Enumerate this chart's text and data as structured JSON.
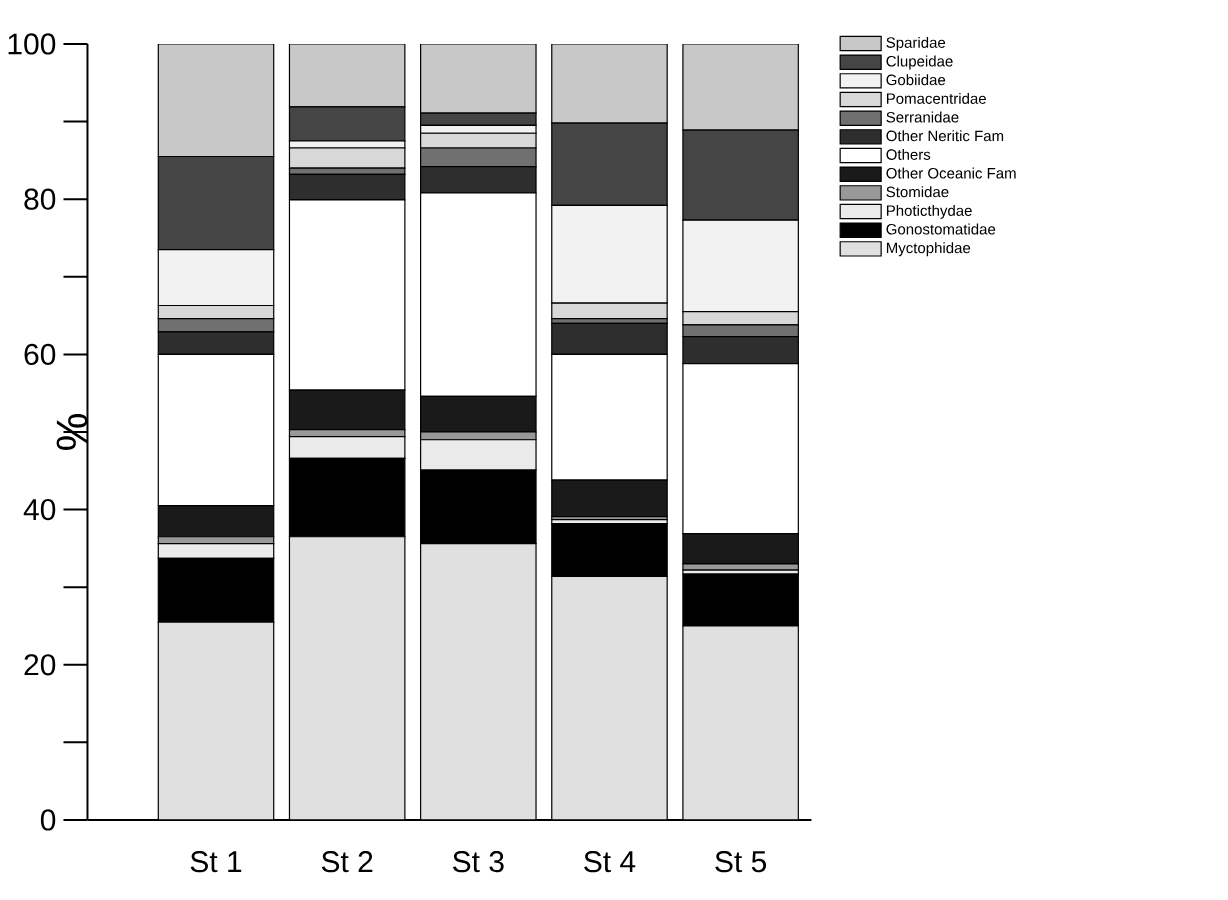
{
  "chart_data": {
    "type": "bar",
    "stacked": true,
    "ylabel": "%",
    "categories": [
      "St 1",
      "St 2",
      "St 3",
      "St 4",
      "St 5"
    ],
    "ylim": [
      0,
      100
    ],
    "yticks": [
      0,
      {
        "value": 10,
        "label": null
      },
      20,
      {
        "value": 30,
        "label": null
      },
      40,
      {
        "value": 50,
        "label": null
      },
      60,
      {
        "value": 70,
        "label": null
      },
      80,
      {
        "value": 90,
        "label": null
      },
      100
    ],
    "legend": "right",
    "grid": false,
    "series": [
      {
        "name": "Myctophidae",
        "color": "#e0e0e0",
        "values": [
          25.5,
          36.5,
          35.6,
          31.4,
          25.0
        ]
      },
      {
        "name": "Gonostomatidae",
        "color": "#000000",
        "values": [
          8.2,
          10.1,
          9.5,
          6.8,
          6.7
        ]
      },
      {
        "name": "Photicthydae",
        "color": "#ebebeb",
        "values": [
          1.9,
          2.8,
          3.9,
          0.5,
          0.5
        ]
      },
      {
        "name": "Stomidae",
        "color": "#999999",
        "values": [
          0.9,
          0.9,
          1.0,
          0.4,
          0.8
        ]
      },
      {
        "name": "Other Oceanic Fam",
        "color": "#1a1a1a",
        "values": [
          4.0,
          5.1,
          4.6,
          4.7,
          3.9
        ]
      },
      {
        "name": "Others",
        "color": "#ffffff",
        "values": [
          19.5,
          24.5,
          26.2,
          16.2,
          21.9
        ]
      },
      {
        "name": "Other Neritic Fam",
        "color": "#2e2e2e",
        "values": [
          2.9,
          3.3,
          3.4,
          4.0,
          3.5
        ]
      },
      {
        "name": "Serranidae",
        "color": "#707070",
        "values": [
          1.7,
          0.8,
          2.4,
          0.6,
          1.5
        ]
      },
      {
        "name": "Pomacentridae",
        "color": "#d8d8d8",
        "values": [
          1.7,
          2.6,
          1.9,
          2.0,
          1.7
        ]
      },
      {
        "name": "Gobiidae",
        "color": "#f2f2f2",
        "values": [
          7.2,
          0.9,
          1.0,
          12.6,
          11.8
        ]
      },
      {
        "name": "Clupeidae",
        "color": "#454545",
        "values": [
          12.0,
          4.4,
          1.6,
          10.6,
          11.6
        ]
      },
      {
        "name": "Sparidae",
        "color": "#c8c8c8",
        "values": [
          14.5,
          8.1,
          8.9,
          10.2,
          11.1
        ]
      }
    ]
  }
}
